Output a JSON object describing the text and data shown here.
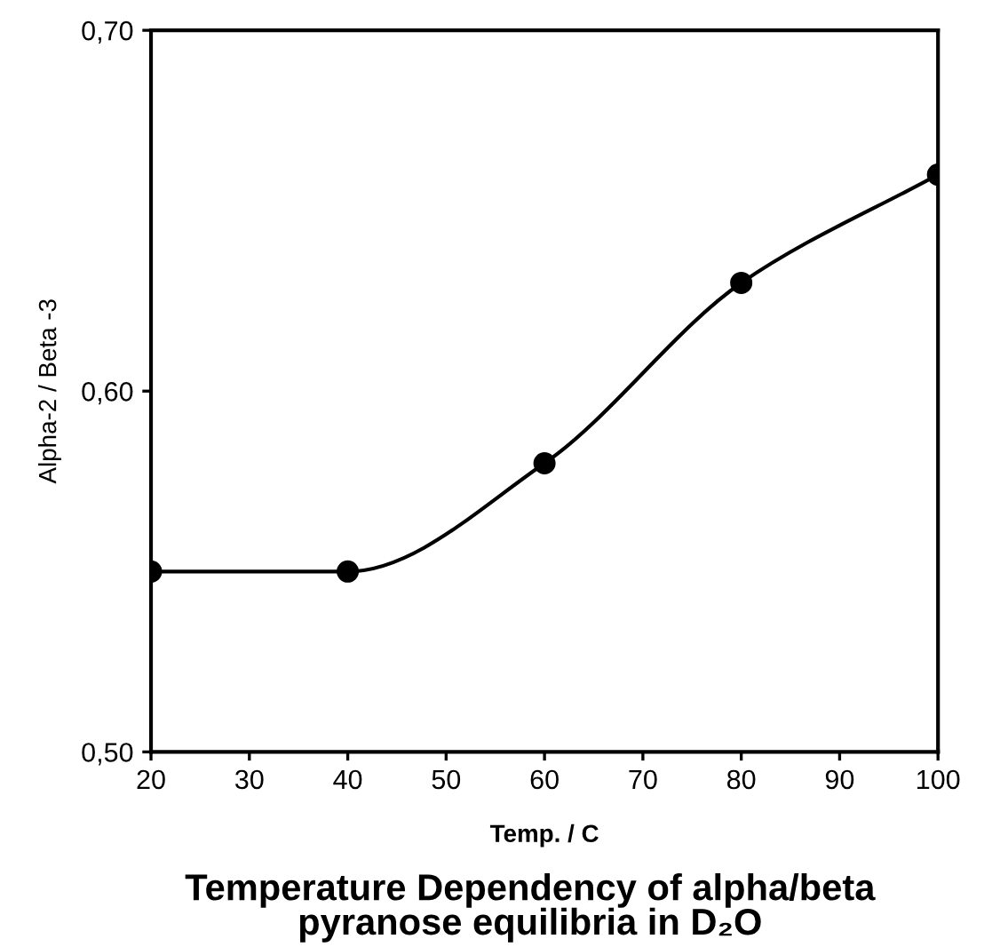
{
  "chart_data": {
    "type": "line",
    "title": "Temperature Dependency of alpha/beta\npyranose equilibria in D₂O",
    "xlabel": "Temp. / C",
    "ylabel": "Alpha-2 / Beta -3",
    "x": [
      20,
      40,
      60,
      80,
      100
    ],
    "series": [
      {
        "color": "#000000",
        "values": [
          0.55,
          0.55,
          0.58,
          0.63,
          0.66
        ]
      }
    ],
    "xlim": [
      20,
      100
    ],
    "xticks": [
      20,
      30,
      40,
      50,
      60,
      70,
      80,
      90,
      100
    ],
    "ylim": [
      0.5,
      0.7
    ],
    "yticks": [
      {
        "value": 0.5,
        "label": "0,50"
      },
      {
        "value": 0.6,
        "label": "0,60"
      },
      {
        "value": 0.7,
        "label": "0,70"
      }
    ],
    "grid": false,
    "legend": false,
    "marker": "circle",
    "line_style": "solid"
  }
}
